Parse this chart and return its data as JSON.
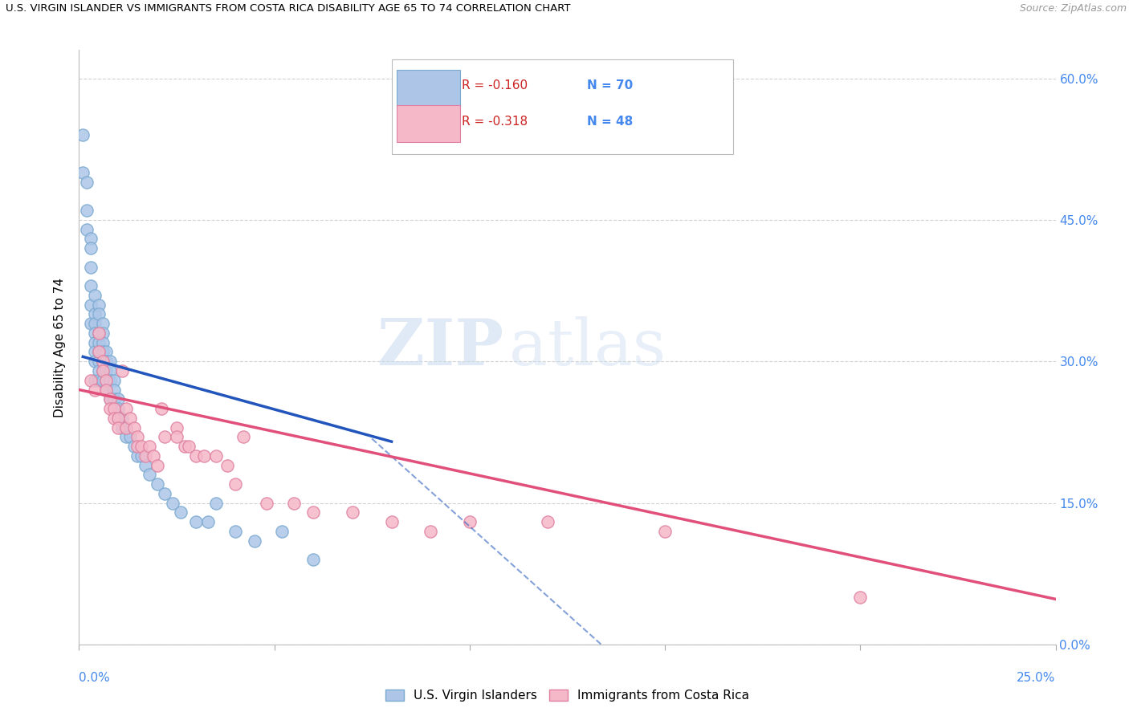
{
  "title": "U.S. VIRGIN ISLANDER VS IMMIGRANTS FROM COSTA RICA DISABILITY AGE 65 TO 74 CORRELATION CHART",
  "source": "Source: ZipAtlas.com",
  "ylabel": "Disability Age 65 to 74",
  "ylabel_ticks": [
    "0.0%",
    "15.0%",
    "30.0%",
    "45.0%",
    "60.0%"
  ],
  "ylabel_tick_vals": [
    0.0,
    0.15,
    0.3,
    0.45,
    0.6
  ],
  "xmin": 0.0,
  "xmax": 0.25,
  "ymin": 0.0,
  "ymax": 0.63,
  "R_blue": -0.16,
  "N_blue": 70,
  "R_pink": -0.318,
  "N_pink": 48,
  "legend_label_blue": "U.S. Virgin Islanders",
  "legend_label_pink": "Immigrants from Costa Rica",
  "watermark_zip": "ZIP",
  "watermark_atlas": "atlas",
  "blue_scatter_color": "#adc6e8",
  "blue_edge_color": "#7aaad0",
  "pink_scatter_color": "#f5b8c8",
  "pink_edge_color": "#e080a0",
  "blue_line_color": "#2255bb",
  "pink_line_color": "#e0507a",
  "background_color": "#ffffff",
  "grid_color": "#cccccc",
  "right_axis_color": "#4488ee",
  "blue_points_x": [
    0.001,
    0.001,
    0.002,
    0.002,
    0.002,
    0.003,
    0.003,
    0.003,
    0.003,
    0.003,
    0.003,
    0.004,
    0.004,
    0.004,
    0.004,
    0.004,
    0.004,
    0.004,
    0.004,
    0.005,
    0.005,
    0.005,
    0.005,
    0.005,
    0.005,
    0.005,
    0.005,
    0.006,
    0.006,
    0.006,
    0.006,
    0.006,
    0.006,
    0.006,
    0.007,
    0.007,
    0.007,
    0.007,
    0.007,
    0.008,
    0.008,
    0.008,
    0.008,
    0.009,
    0.009,
    0.009,
    0.01,
    0.01,
    0.01,
    0.011,
    0.011,
    0.012,
    0.012,
    0.013,
    0.014,
    0.015,
    0.016,
    0.017,
    0.018,
    0.02,
    0.022,
    0.024,
    0.026,
    0.03,
    0.033,
    0.035,
    0.04,
    0.045,
    0.052,
    0.06
  ],
  "blue_points_y": [
    0.54,
    0.5,
    0.49,
    0.46,
    0.44,
    0.43,
    0.42,
    0.4,
    0.38,
    0.36,
    0.34,
    0.37,
    0.35,
    0.34,
    0.33,
    0.32,
    0.31,
    0.3,
    0.28,
    0.36,
    0.35,
    0.33,
    0.32,
    0.31,
    0.3,
    0.29,
    0.28,
    0.34,
    0.33,
    0.32,
    0.31,
    0.3,
    0.29,
    0.28,
    0.31,
    0.3,
    0.29,
    0.28,
    0.27,
    0.3,
    0.29,
    0.28,
    0.26,
    0.28,
    0.27,
    0.26,
    0.26,
    0.25,
    0.24,
    0.24,
    0.23,
    0.23,
    0.22,
    0.22,
    0.21,
    0.2,
    0.2,
    0.19,
    0.18,
    0.17,
    0.16,
    0.15,
    0.14,
    0.13,
    0.13,
    0.15,
    0.12,
    0.11,
    0.12,
    0.09
  ],
  "pink_points_x": [
    0.003,
    0.004,
    0.005,
    0.005,
    0.006,
    0.006,
    0.007,
    0.007,
    0.008,
    0.008,
    0.009,
    0.009,
    0.01,
    0.01,
    0.011,
    0.012,
    0.012,
    0.013,
    0.014,
    0.015,
    0.015,
    0.016,
    0.017,
    0.018,
    0.019,
    0.02,
    0.021,
    0.022,
    0.025,
    0.025,
    0.027,
    0.028,
    0.03,
    0.032,
    0.035,
    0.038,
    0.04,
    0.042,
    0.048,
    0.055,
    0.06,
    0.07,
    0.08,
    0.09,
    0.1,
    0.12,
    0.15,
    0.2
  ],
  "pink_points_y": [
    0.28,
    0.27,
    0.33,
    0.31,
    0.3,
    0.29,
    0.28,
    0.27,
    0.26,
    0.25,
    0.25,
    0.24,
    0.24,
    0.23,
    0.29,
    0.25,
    0.23,
    0.24,
    0.23,
    0.22,
    0.21,
    0.21,
    0.2,
    0.21,
    0.2,
    0.19,
    0.25,
    0.22,
    0.23,
    0.22,
    0.21,
    0.21,
    0.2,
    0.2,
    0.2,
    0.19,
    0.17,
    0.22,
    0.15,
    0.15,
    0.14,
    0.14,
    0.13,
    0.12,
    0.13,
    0.13,
    0.12,
    0.05
  ]
}
